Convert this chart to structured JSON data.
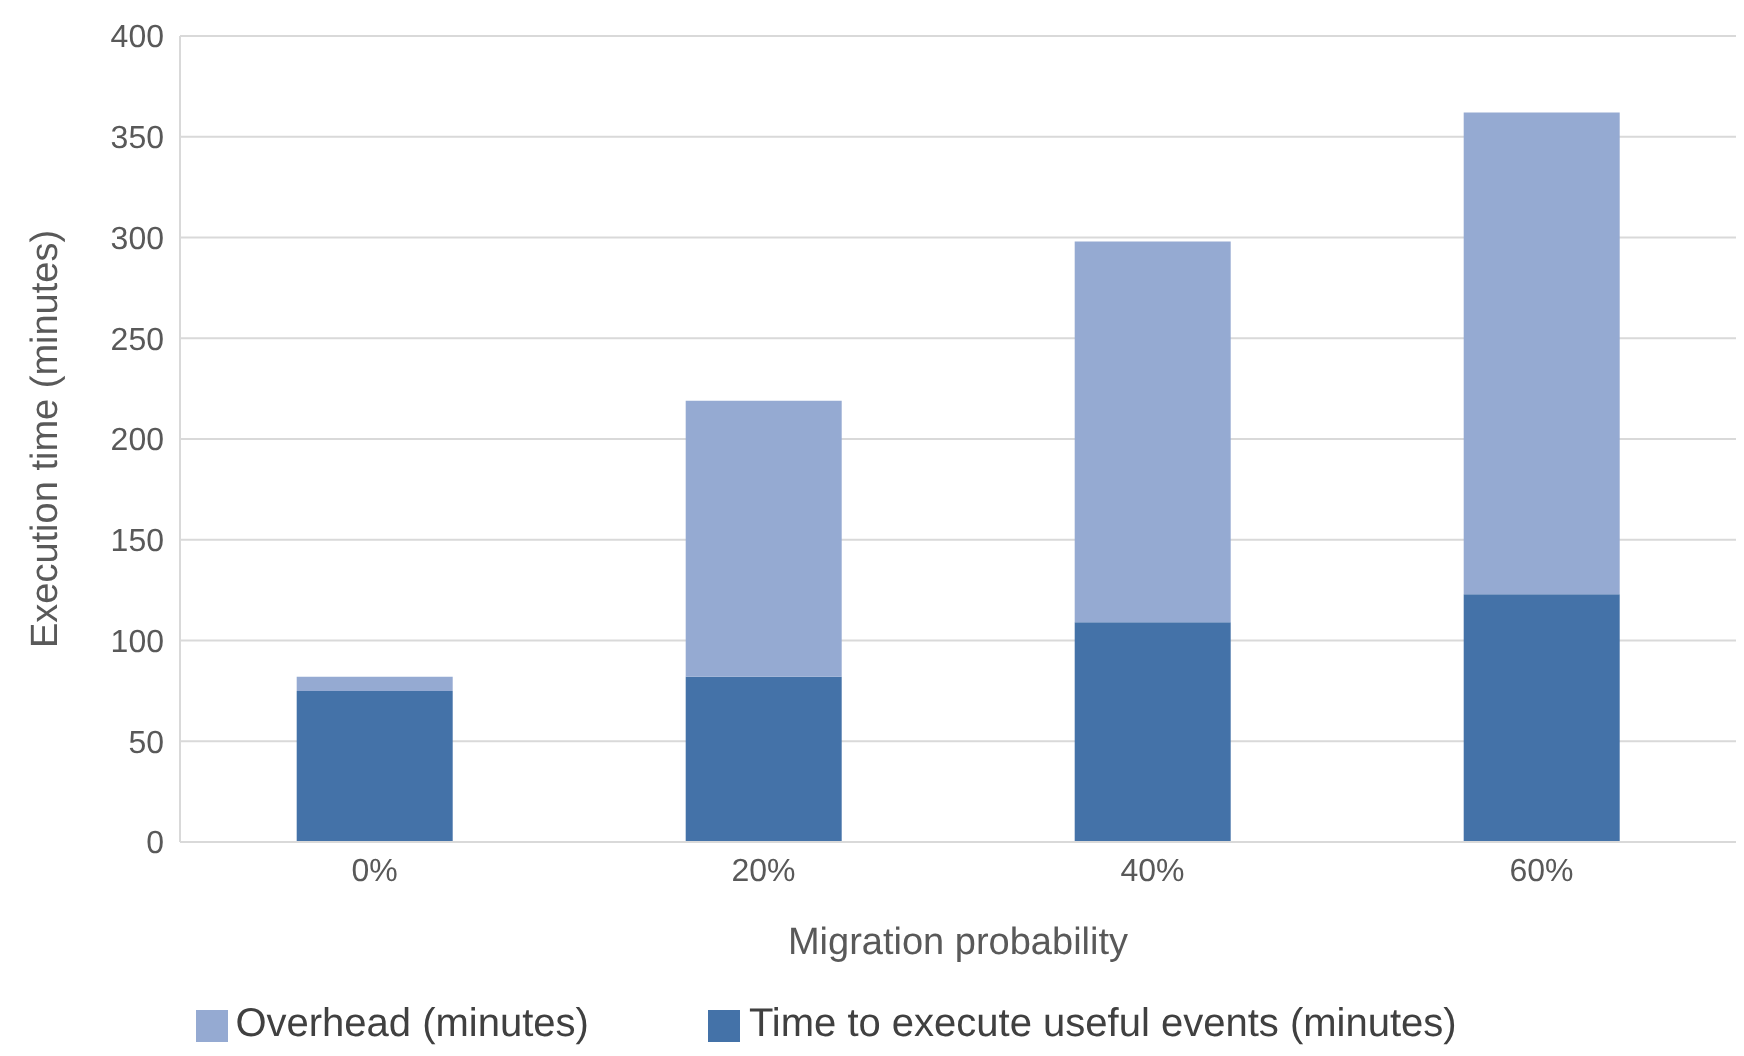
{
  "chart_data": {
    "type": "bar",
    "stacked": true,
    "xlabel": "Migration probability",
    "ylabel": "Execution time (minutes)",
    "categories": [
      "0%",
      "20%",
      "40%",
      "60%"
    ],
    "series": [
      {
        "name": "Time to execute useful events (minutes)",
        "color": "#4472a8",
        "values": [
          75,
          82,
          109,
          123
        ]
      },
      {
        "name": "Overhead (minutes)",
        "color": "#95aad2",
        "values": [
          7,
          137,
          189,
          239
        ]
      }
    ],
    "ylim": [
      0,
      400
    ],
    "yticks": [
      0,
      50,
      100,
      150,
      200,
      250,
      300,
      350,
      400
    ],
    "grid": "y",
    "legend": "bottom"
  }
}
